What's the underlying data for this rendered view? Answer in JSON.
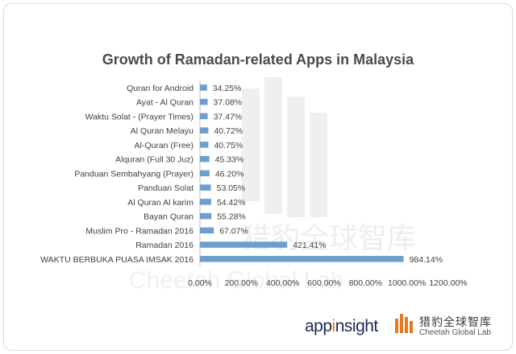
{
  "chart_data": {
    "type": "bar",
    "orientation": "horizontal",
    "title": "Growth of Ramadan-related Apps in Malaysia",
    "categories": [
      "Quran for Android",
      "Ayat - Al Quran",
      "Waktu Solat - (Prayer Times)",
      "Al Quran Melayu",
      "Al-Quran (Free)",
      "Alquran (Full 30 Juz)",
      "Panduan Sembahyang (Prayer)",
      "Panduan Solat",
      "Al Quran Al karim",
      "Bayan Quran",
      "Muslim Pro - Ramadan 2016",
      "Ramadan 2016",
      "WAKTU BERBUKA PUASA IMSAK 2016"
    ],
    "values": [
      34.25,
      37.08,
      37.47,
      40.72,
      40.75,
      45.33,
      46.2,
      53.05,
      54.42,
      55.28,
      67.07,
      421.41,
      984.14
    ],
    "data_labels": [
      "34.25%",
      "37.08%",
      "37.47%",
      "40.72%",
      "40.75%",
      "45.33%",
      "46.20%",
      "53.05%",
      "54.42%",
      "55.28%",
      "67.07%",
      "421.41%",
      "984.14%"
    ],
    "xlim": [
      0,
      1200
    ],
    "xticks": [
      0,
      200,
      400,
      600,
      800,
      1000,
      1200
    ],
    "xtick_labels": [
      "0.00%",
      "200.00%",
      "400.00%",
      "600.00%",
      "800.00%",
      "1000.00%",
      "1200.00%"
    ],
    "grid": false,
    "legend": "none",
    "bar_color": "#6a9fcf"
  },
  "logos": {
    "appinsight_prefix": "app",
    "appinsight_highlight": "i",
    "appinsight_suffix": "nsight",
    "cheetah_cn": "猎豹全球智库",
    "cheetah_en": "Cheetah Global Lab",
    "brand_orange": "#e8781e",
    "brand_navy": "#1b2a52"
  },
  "watermark": {
    "cn": "猎豹全球智库",
    "en": "Cheetah Global Lab"
  }
}
